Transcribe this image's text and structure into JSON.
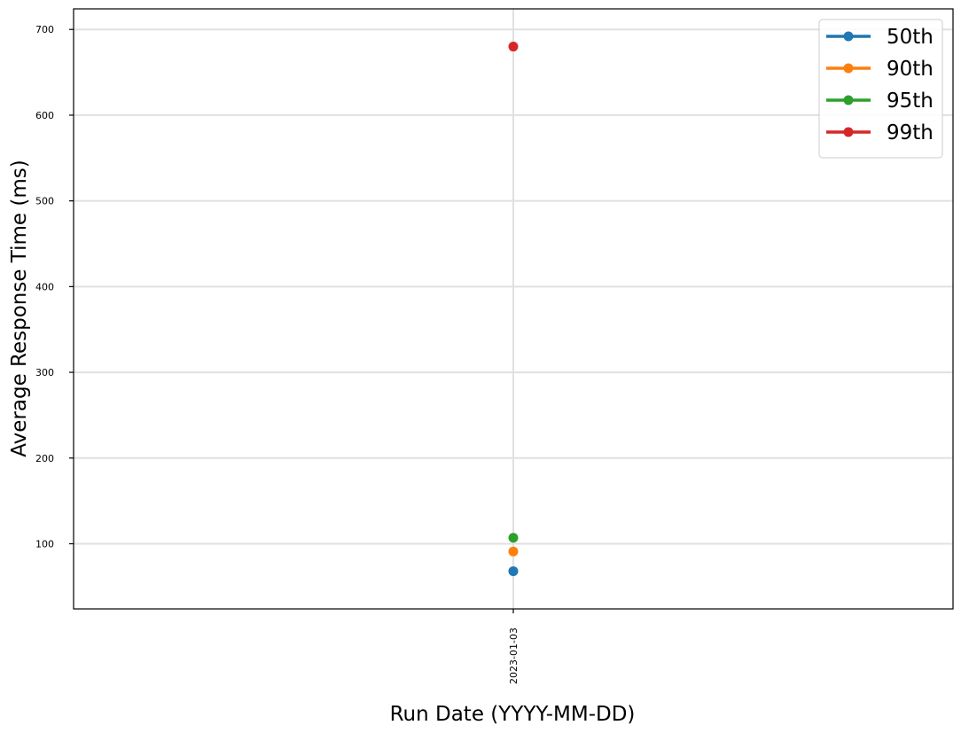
{
  "chart_data": {
    "type": "line",
    "title": "",
    "xlabel": "Run Date (YYYY-MM-DD)",
    "ylabel": "Average Response Time (ms)",
    "x": [
      "2023-01-03"
    ],
    "series": [
      {
        "name": "50th",
        "color": "#1f77b4",
        "values": [
          68
        ]
      },
      {
        "name": "90th",
        "color": "#ff7f0e",
        "values": [
          91
        ]
      },
      {
        "name": "95th",
        "color": "#2ca02c",
        "values": [
          107
        ]
      },
      {
        "name": "99th",
        "color": "#d62728",
        "values": [
          680
        ]
      }
    ],
    "yticks": [
      100,
      200,
      300,
      400,
      500,
      600,
      700
    ],
    "ylim": [
      24,
      724
    ],
    "grid": true,
    "legend": "top-right"
  }
}
